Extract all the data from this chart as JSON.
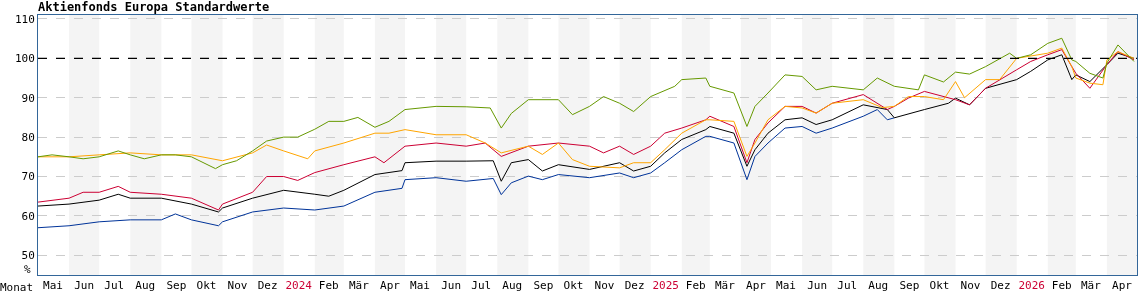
{
  "chart_data": {
    "type": "line",
    "title": "Aktienfonds Europa Standardwerte",
    "xlabel": "Monat",
    "ylabel": "%",
    "xlim": [
      "2023-05-01",
      "2026-05-01"
    ],
    "xticks": [
      {
        "value": "2023-05-16",
        "label": "Mai"
      },
      {
        "value": "2023-06-16",
        "label": "Jun"
      },
      {
        "value": "2023-07-16",
        "label": "Jul"
      },
      {
        "value": "2023-08-16",
        "label": "Aug"
      },
      {
        "value": "2023-09-16",
        "label": "Sep"
      },
      {
        "value": "2023-10-16",
        "label": "Okt"
      },
      {
        "value": "2023-11-16",
        "label": "Nov"
      },
      {
        "value": "2023-12-16",
        "label": "Dez"
      },
      {
        "value": "2024-01-16",
        "label": "2024"
      },
      {
        "value": "2024-02-15",
        "label": "Feb"
      },
      {
        "value": "2024-03-16",
        "label": "Mär"
      },
      {
        "value": "2024-04-16",
        "label": "Apr"
      },
      {
        "value": "2024-05-16",
        "label": "Mai"
      },
      {
        "value": "2024-06-16",
        "label": "Jun"
      },
      {
        "value": "2024-07-16",
        "label": "Jul"
      },
      {
        "value": "2024-08-16",
        "label": "Aug"
      },
      {
        "value": "2024-09-16",
        "label": "Sep"
      },
      {
        "value": "2024-10-16",
        "label": "Okt"
      },
      {
        "value": "2024-11-16",
        "label": "Nov"
      },
      {
        "value": "2024-12-16",
        "label": "Dez"
      },
      {
        "value": "2025-01-16",
        "label": "2025"
      },
      {
        "value": "2025-02-15",
        "label": "Feb"
      },
      {
        "value": "2025-03-16",
        "label": "Mär"
      },
      {
        "value": "2025-04-16",
        "label": "Apr"
      },
      {
        "value": "2025-05-16",
        "label": "Mai"
      },
      {
        "value": "2025-06-16",
        "label": "Jun"
      },
      {
        "value": "2025-07-16",
        "label": "Jul"
      },
      {
        "value": "2025-08-16",
        "label": "Aug"
      },
      {
        "value": "2025-09-16",
        "label": "Sep"
      },
      {
        "value": "2025-10-16",
        "label": "Okt"
      },
      {
        "value": "2025-11-16",
        "label": "Nov"
      },
      {
        "value": "2025-12-16",
        "label": "Dez"
      },
      {
        "value": "2026-01-16",
        "label": "2026"
      },
      {
        "value": "2026-02-15",
        "label": "Feb"
      },
      {
        "value": "2026-03-16",
        "label": "Mär"
      },
      {
        "value": "2026-04-16",
        "label": "Apr"
      }
    ],
    "ylim": [
      45,
      111
    ],
    "yticks": [
      50,
      60,
      70,
      80,
      90,
      100,
      110
    ],
    "grid": "y",
    "marker": "none",
    "line_style": "solid",
    "ref_lines": [
      {
        "axis": "y",
        "value": 100,
        "color": "#000000",
        "line_style": "dashed"
      }
    ],
    "bands": [
      {
        "axis": "x",
        "from": "2023-06-01",
        "to": "2023-07-01",
        "color": "#f4f4f4"
      },
      {
        "axis": "x",
        "from": "2023-08-01",
        "to": "2023-09-01",
        "color": "#f4f4f4"
      },
      {
        "axis": "x",
        "from": "2023-10-01",
        "to": "2023-11-01",
        "color": "#f4f4f4"
      },
      {
        "axis": "x",
        "from": "2023-12-01",
        "to": "2024-01-01",
        "color": "#f4f4f4"
      },
      {
        "axis": "x",
        "from": "2024-02-01",
        "to": "2024-03-01",
        "color": "#f4f4f4"
      },
      {
        "axis": "x",
        "from": "2024-04-01",
        "to": "2024-05-01",
        "color": "#f4f4f4"
      },
      {
        "axis": "x",
        "from": "2024-06-01",
        "to": "2024-07-01",
        "color": "#f4f4f4"
      },
      {
        "axis": "x",
        "from": "2024-08-01",
        "to": "2024-09-01",
        "color": "#f4f4f4"
      },
      {
        "axis": "x",
        "from": "2024-10-01",
        "to": "2024-11-01",
        "color": "#f4f4f4"
      },
      {
        "axis": "x",
        "from": "2024-12-01",
        "to": "2025-01-01",
        "color": "#f4f4f4"
      },
      {
        "axis": "x",
        "from": "2025-02-01",
        "to": "2025-03-01",
        "color": "#f4f4f4"
      },
      {
        "axis": "x",
        "from": "2025-04-01",
        "to": "2025-05-01",
        "color": "#f4f4f4"
      },
      {
        "axis": "x",
        "from": "2025-06-01",
        "to": "2025-07-01",
        "color": "#f4f4f4"
      },
      {
        "axis": "x",
        "from": "2025-08-01",
        "to": "2025-09-01",
        "color": "#f4f4f4"
      },
      {
        "axis": "x",
        "from": "2025-10-01",
        "to": "2025-11-01",
        "color": "#f4f4f4"
      },
      {
        "axis": "x",
        "from": "2025-12-01",
        "to": "2026-01-01",
        "color": "#f4f4f4"
      },
      {
        "axis": "x",
        "from": "2026-02-01",
        "to": "2026-03-01",
        "color": "#f4f4f4"
      },
      {
        "axis": "x",
        "from": "2026-04-01",
        "to": "2026-05-01",
        "color": "#f4f4f4"
      }
    ],
    "series": [
      {
        "color": "#003399",
        "x": [
          "2023-05-01",
          "2023-06-01",
          "2023-07-01",
          "2023-08-01",
          "2023-09-01",
          "2023-09-15",
          "2023-10-01",
          "2023-10-28",
          "2023-11-01",
          "2023-12-01",
          "2024-01-01",
          "2024-02-01",
          "2024-03-01",
          "2024-04-01",
          "2024-04-28",
          "2024-05-01",
          "2024-06-01",
          "2024-07-01",
          "2024-07-28",
          "2024-08-05",
          "2024-08-15",
          "2024-09-01",
          "2024-09-15",
          "2024-10-01",
          "2024-11-01",
          "2024-12-01",
          "2024-12-15",
          "2025-01-01",
          "2025-01-15",
          "2025-02-01",
          "2025-02-25",
          "2025-03-01",
          "2025-03-25",
          "2025-04-07",
          "2025-04-15",
          "2025-04-28",
          "2025-05-15",
          "2025-06-01",
          "2025-06-15",
          "2025-07-01",
          "2025-08-01",
          "2025-08-15",
          "2025-08-25",
          "2025-09-01"
        ],
        "values": [
          57,
          57.5,
          58.5,
          59,
          59,
          60.5,
          59,
          57.5,
          58.5,
          61,
          62,
          61.5,
          62.5,
          66,
          67,
          69.2,
          69.7,
          68.8,
          69.5,
          65.4,
          68.4,
          70.1,
          69.2,
          70.5,
          69.7,
          70.9,
          69.7,
          70.9,
          73.5,
          76.8,
          80.2,
          80.2,
          78.5,
          69.2,
          75.1,
          78.5,
          82.3,
          82.7,
          81,
          82.3,
          85.3,
          87,
          84.4,
          84.9
        ]
      },
      {
        "color": "#000000",
        "x": [
          "2023-05-01",
          "2023-06-01",
          "2023-07-01",
          "2023-07-20",
          "2023-08-01",
          "2023-09-01",
          "2023-10-01",
          "2023-10-28",
          "2023-11-01",
          "2023-12-01",
          "2024-01-01",
          "2024-02-01",
          "2024-02-15",
          "2024-03-01",
          "2024-04-01",
          "2024-04-28",
          "2024-05-01",
          "2024-06-01",
          "2024-07-01",
          "2024-07-28",
          "2024-08-05",
          "2024-08-15",
          "2024-09-01",
          "2024-09-15",
          "2024-10-01",
          "2024-11-01",
          "2024-12-01",
          "2024-12-15",
          "2025-01-01",
          "2025-01-15",
          "2025-02-01",
          "2025-02-25",
          "2025-03-01",
          "2025-03-25",
          "2025-04-07",
          "2025-04-15",
          "2025-04-28",
          "2025-05-15",
          "2025-06-01",
          "2025-06-15",
          "2025-07-01",
          "2025-08-01",
          "2025-08-25",
          "2025-09-01",
          "2025-10-01",
          "2025-10-25",
          "2025-11-01",
          "2025-11-15",
          "2025-12-01",
          "2026-01-01",
          "2026-01-15",
          "2026-02-01",
          "2026-02-15",
          "2026-02-25",
          "2026-03-01",
          "2026-03-15",
          "2026-04-01",
          "2026-04-12",
          "2026-04-28"
        ],
        "values": [
          62.5,
          63,
          64,
          65.5,
          64.5,
          64.5,
          63,
          61,
          62,
          64.5,
          66.5,
          65.5,
          65,
          66.5,
          70.5,
          71.5,
          73.5,
          73.9,
          73.9,
          74,
          68.8,
          73.5,
          74.3,
          71.4,
          73,
          71.8,
          73.5,
          71.4,
          72.6,
          76,
          79.4,
          81.9,
          82.7,
          81,
          72.6,
          76.8,
          81,
          84.4,
          84.9,
          83.2,
          84.4,
          88.2,
          87,
          84.9,
          87,
          88.6,
          89.9,
          88.2,
          92.4,
          94.6,
          96.7,
          99.6,
          100.9,
          94.6,
          95.8,
          94.1,
          98.4,
          101.3,
          100
        ]
      },
      {
        "color": "#cc0033",
        "x": [
          "2023-05-01",
          "2023-06-01",
          "2023-06-15",
          "2023-07-01",
          "2023-07-20",
          "2023-08-01",
          "2023-09-01",
          "2023-10-01",
          "2023-10-28",
          "2023-11-01",
          "2023-12-01",
          "2023-12-15",
          "2024-01-01",
          "2024-01-15",
          "2024-02-01",
          "2024-03-01",
          "2024-04-01",
          "2024-04-10",
          "2024-05-01",
          "2024-06-01",
          "2024-07-01",
          "2024-07-20",
          "2024-08-05",
          "2024-09-01",
          "2024-10-01",
          "2024-11-01",
          "2024-11-15",
          "2024-12-01",
          "2024-12-15",
          "2025-01-01",
          "2025-01-15",
          "2025-02-01",
          "2025-02-25",
          "2025-03-01",
          "2025-03-25",
          "2025-04-07",
          "2025-04-15",
          "2025-04-28",
          "2025-05-15",
          "2025-06-01",
          "2025-06-15",
          "2025-07-01",
          "2025-08-01",
          "2025-08-25",
          "2025-09-01",
          "2025-09-15",
          "2025-10-01",
          "2025-11-01",
          "2025-11-15",
          "2025-12-01",
          "2026-01-01",
          "2026-01-15",
          "2026-02-01",
          "2026-02-15",
          "2026-02-25",
          "2026-03-01",
          "2026-03-15",
          "2026-04-01",
          "2026-04-12",
          "2026-04-28"
        ],
        "values": [
          63.5,
          64.5,
          66,
          66,
          67.5,
          66,
          65.5,
          64.5,
          61.5,
          63,
          66,
          70,
          70,
          69,
          71,
          73,
          75,
          73.5,
          77.7,
          78.5,
          77.7,
          78.5,
          75.1,
          77.7,
          78.5,
          77.7,
          76,
          77.7,
          75.6,
          77.7,
          81,
          82.3,
          84.4,
          85.3,
          82.7,
          73.5,
          79.4,
          83.6,
          87.8,
          87.8,
          86.1,
          88.6,
          90.8,
          87,
          87.8,
          89.9,
          91.6,
          89.5,
          88.2,
          92.4,
          97.1,
          99.2,
          100.9,
          102.2,
          97.9,
          96.2,
          92.4,
          98.4,
          101.7,
          99.6
        ]
      },
      {
        "color": "#ffa500",
        "x": [
          "2023-05-01",
          "2023-06-01",
          "2023-07-01",
          "2023-08-01",
          "2023-09-01",
          "2023-10-01",
          "2023-11-01",
          "2023-12-01",
          "2023-12-15",
          "2024-01-01",
          "2024-01-25",
          "2024-02-01",
          "2024-03-01",
          "2024-04-01",
          "2024-04-15",
          "2024-05-01",
          "2024-06-01",
          "2024-07-01",
          "2024-07-20",
          "2024-08-05",
          "2024-09-01",
          "2024-09-15",
          "2024-10-01",
          "2024-10-15",
          "2024-11-01",
          "2024-12-01",
          "2024-12-15",
          "2025-01-01",
          "2025-01-15",
          "2025-02-01",
          "2025-02-25",
          "2025-03-01",
          "2025-03-25",
          "2025-04-07",
          "2025-04-15",
          "2025-04-28",
          "2025-05-15",
          "2025-06-01",
          "2025-06-15",
          "2025-07-01",
          "2025-08-01",
          "2025-08-20",
          "2025-09-01",
          "2025-09-15",
          "2025-10-01",
          "2025-10-20",
          "2025-11-01",
          "2025-11-10",
          "2025-12-01",
          "2025-12-15",
          "2026-01-01",
          "2026-02-01",
          "2026-02-15",
          "2026-02-25",
          "2026-03-01",
          "2026-03-15",
          "2026-03-28",
          "2026-04-01",
          "2026-04-12",
          "2026-04-28"
        ],
        "values": [
          75,
          75,
          75.5,
          76,
          75.5,
          75.5,
          74,
          76,
          78,
          76.5,
          74.5,
          76.5,
          78.5,
          81,
          81,
          81.9,
          80.6,
          80.6,
          78.5,
          76,
          77.7,
          75.6,
          78.5,
          74.3,
          72.6,
          72.2,
          73.5,
          73.5,
          76.8,
          81,
          84.4,
          84.4,
          84,
          75.1,
          78.5,
          84.4,
          87.8,
          87.4,
          86.1,
          88.6,
          89.5,
          87.5,
          87.8,
          90.3,
          90.3,
          89.5,
          94.1,
          90,
          94.6,
          94.6,
          100,
          101.3,
          102.6,
          97.9,
          95,
          93.7,
          93.3,
          99.6,
          101.7,
          100
        ]
      },
      {
        "color": "#669900",
        "x": [
          "2023-05-01",
          "2023-05-15",
          "2023-06-01",
          "2023-06-15",
          "2023-07-01",
          "2023-07-20",
          "2023-08-01",
          "2023-08-15",
          "2023-09-01",
          "2023-09-15",
          "2023-10-01",
          "2023-10-25",
          "2023-11-01",
          "2023-11-15",
          "2023-12-01",
          "2023-12-15",
          "2024-01-01",
          "2024-01-15",
          "2024-02-01",
          "2024-02-15",
          "2024-03-01",
          "2024-03-15",
          "2024-04-01",
          "2024-04-15",
          "2024-05-01",
          "2024-06-01",
          "2024-07-01",
          "2024-07-25",
          "2024-08-05",
          "2024-08-15",
          "2024-09-01",
          "2024-10-01",
          "2024-10-15",
          "2024-11-01",
          "2024-11-15",
          "2024-12-01",
          "2024-12-15",
          "2025-01-01",
          "2025-01-25",
          "2025-02-01",
          "2025-02-25",
          "2025-03-01",
          "2025-03-25",
          "2025-04-07",
          "2025-04-15",
          "2025-04-28",
          "2025-05-15",
          "2025-06-01",
          "2025-06-15",
          "2025-07-01",
          "2025-08-01",
          "2025-08-15",
          "2025-09-01",
          "2025-09-25",
          "2025-10-01",
          "2025-10-20",
          "2025-11-01",
          "2025-11-15",
          "2025-12-01",
          "2025-12-25",
          "2026-01-01",
          "2026-01-15",
          "2026-02-01",
          "2026-02-15",
          "2026-02-25",
          "2026-03-01",
          "2026-03-15",
          "2026-03-28",
          "2026-04-01",
          "2026-04-12",
          "2026-04-28"
        ],
        "values": [
          75,
          75.5,
          75,
          74.5,
          75,
          76.5,
          75.5,
          74.5,
          75.5,
          75.5,
          75,
          72,
          73,
          74,
          76.5,
          79,
          80,
          80,
          82,
          84,
          84,
          85,
          82.5,
          84,
          87,
          87.8,
          87.7,
          87.4,
          82.3,
          86,
          89.5,
          89.5,
          85.7,
          87.8,
          90.3,
          88.6,
          86.5,
          90.3,
          92.9,
          94.6,
          95,
          92.9,
          91.2,
          82.7,
          87.8,
          91.2,
          95.8,
          95.4,
          92,
          92.9,
          92,
          95,
          92.9,
          92,
          95.8,
          94,
          96.5,
          96,
          97.9,
          101.3,
          100,
          100.9,
          103.8,
          105.1,
          99.6,
          99.2,
          96.2,
          95,
          98.8,
          103.4,
          99.2
        ]
      }
    ]
  }
}
